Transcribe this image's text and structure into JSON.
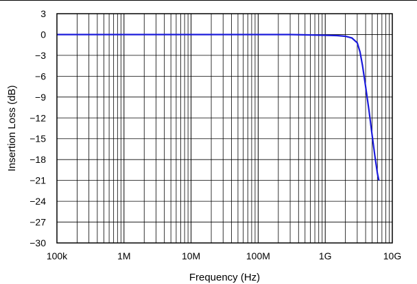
{
  "chart_data": {
    "type": "line",
    "title": "",
    "xlabel": "Frequency (Hz)",
    "ylabel": "Insertion Loss (dB)",
    "xscale": "log",
    "xlim": [
      100000,
      10000000000
    ],
    "ylim": [
      -30,
      3
    ],
    "x_ticks": [
      100000,
      1000000,
      10000000,
      100000000,
      1000000000,
      10000000000
    ],
    "x_tick_labels": [
      "100k",
      "1M",
      "10M",
      "100M",
      "1G",
      "10G"
    ],
    "y_ticks": [
      3,
      0,
      -3,
      -6,
      -9,
      -12,
      -15,
      -18,
      -21,
      -24,
      -27,
      -30
    ],
    "y_tick_labels": [
      "3",
      "0",
      "−3",
      "−6",
      "−9",
      "−12",
      "−15",
      "−18",
      "−21",
      "−24",
      "−27",
      "−30"
    ],
    "grid": true,
    "legend": "none",
    "series": [
      {
        "color": "#1a1adb",
        "x": [
          100000,
          1000000,
          10000000,
          100000000,
          300000000,
          1000000000,
          1500000000,
          2000000000,
          2500000000,
          3000000000,
          3300000000,
          3600000000,
          4000000000,
          4500000000,
          5000000000,
          5500000000,
          6000000000,
          6300000000
        ],
        "y": [
          0,
          0,
          0,
          0,
          0,
          -0.1,
          -0.15,
          -0.25,
          -0.5,
          -1.2,
          -2.5,
          -4.5,
          -7.5,
          -11,
          -14.5,
          -17.5,
          -20,
          -21
        ]
      }
    ]
  }
}
